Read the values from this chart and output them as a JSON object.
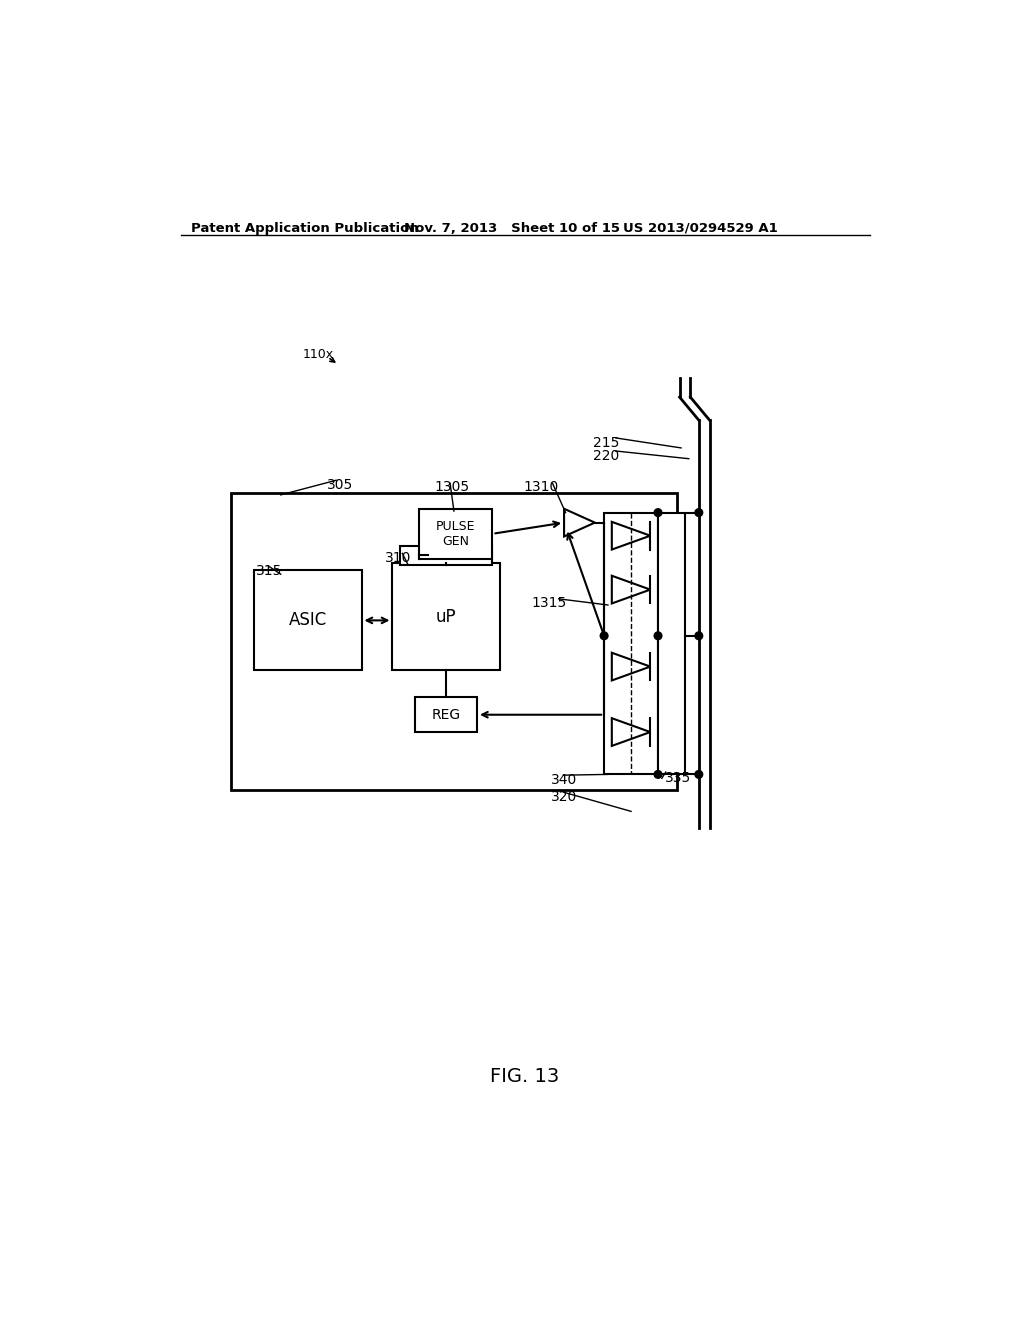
{
  "header_left": "Patent Application Publication",
  "header_mid": "Nov. 7, 2013   Sheet 10 of 15",
  "header_right": "US 2013/0294529 A1",
  "figure_label": "FIG. 13",
  "label_110x": "110x",
  "label_305": "305",
  "label_1305": "1305",
  "label_1310": "1310",
  "label_315": "315",
  "label_310": "310",
  "label_1315": "1315",
  "label_215": "215",
  "label_220": "220",
  "label_335": "335",
  "label_340": "340",
  "label_320": "320",
  "box_asic_text": "ASIC",
  "box_up_text": "uP",
  "box_pulsegen_text": "PULSE\nGEN",
  "box_reg_text": "REG",
  "bg_color": "#ffffff",
  "line_color": "#000000"
}
